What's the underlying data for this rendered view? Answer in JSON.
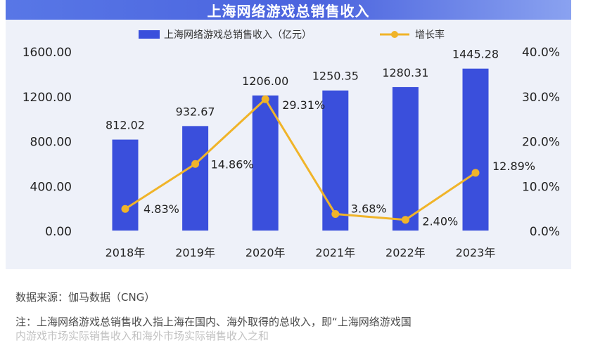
{
  "page": {
    "title": "上海网络游戏总销售收入",
    "source": "数据来源：伽马数据（CNG）",
    "note": "注：上海网络游戏总销售收入指上海在国内、海外取得的总收入，即“上海网络游戏国",
    "note_cut": "内游戏市场实际销售收入和海外市场实际销售收入之和"
  },
  "colors": {
    "bar": "#3a4fdc",
    "line": "#f0b429",
    "panel": "#eef1f9",
    "title_bg": "#4a63de"
  },
  "chart_data": {
    "type": "bar",
    "categories": [
      "2018年",
      "2019年",
      "2020年",
      "2021年",
      "2022年",
      "2023年"
    ],
    "series": [
      {
        "name": "上海网络游戏总销售收入（亿元）",
        "type": "bar",
        "axis": "left",
        "values": [
          812.02,
          932.67,
          1206.0,
          1250.35,
          1280.31,
          1445.28
        ],
        "labels": [
          "812.02",
          "932.67",
          "1206.00",
          "1250.35",
          "1280.31",
          "1445.28"
        ]
      },
      {
        "name": "增长率",
        "type": "line",
        "axis": "right",
        "values": [
          4.83,
          14.86,
          29.31,
          3.68,
          2.4,
          12.89
        ],
        "labels": [
          "4.83%",
          "14.86%",
          "29.31%",
          "3.68%",
          "2.40%",
          "12.89%"
        ]
      }
    ],
    "y_left": {
      "ylim": [
        0,
        1600
      ],
      "ticks": [
        "0.00",
        "400.00",
        "800.00",
        "1200.00",
        "1600.00"
      ]
    },
    "y_right": {
      "ylim": [
        0,
        40
      ],
      "ticks": [
        "0.0%",
        "10.0%",
        "20.0%",
        "30.0%",
        "40.0%"
      ]
    },
    "legend_position": "top",
    "grid": false
  }
}
